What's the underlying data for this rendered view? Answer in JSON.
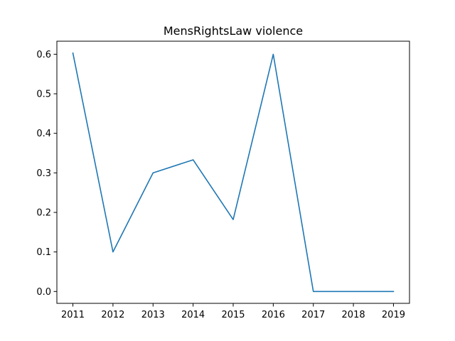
{
  "chart_data": {
    "type": "line",
    "title": "MensRightsLaw violence",
    "xlabel": "",
    "ylabel": "",
    "x": [
      2011,
      2012,
      2013,
      2014,
      2015,
      2016,
      2017,
      2018,
      2019
    ],
    "series": [
      {
        "values": [
          0.603,
          0.1,
          0.3,
          0.333,
          0.182,
          0.6,
          0.0,
          0.0,
          0.0
        ]
      }
    ],
    "xticks": [
      "2011",
      "2012",
      "2013",
      "2014",
      "2015",
      "2016",
      "2017",
      "2018",
      "2019"
    ],
    "yticks": [
      "0.0",
      "0.1",
      "0.2",
      "0.3",
      "0.4",
      "0.5",
      "0.6"
    ],
    "xlim": [
      2010.6,
      2019.4
    ],
    "ylim": [
      -0.03,
      0.633
    ],
    "grid": false,
    "line_color": "#1f77b4"
  }
}
